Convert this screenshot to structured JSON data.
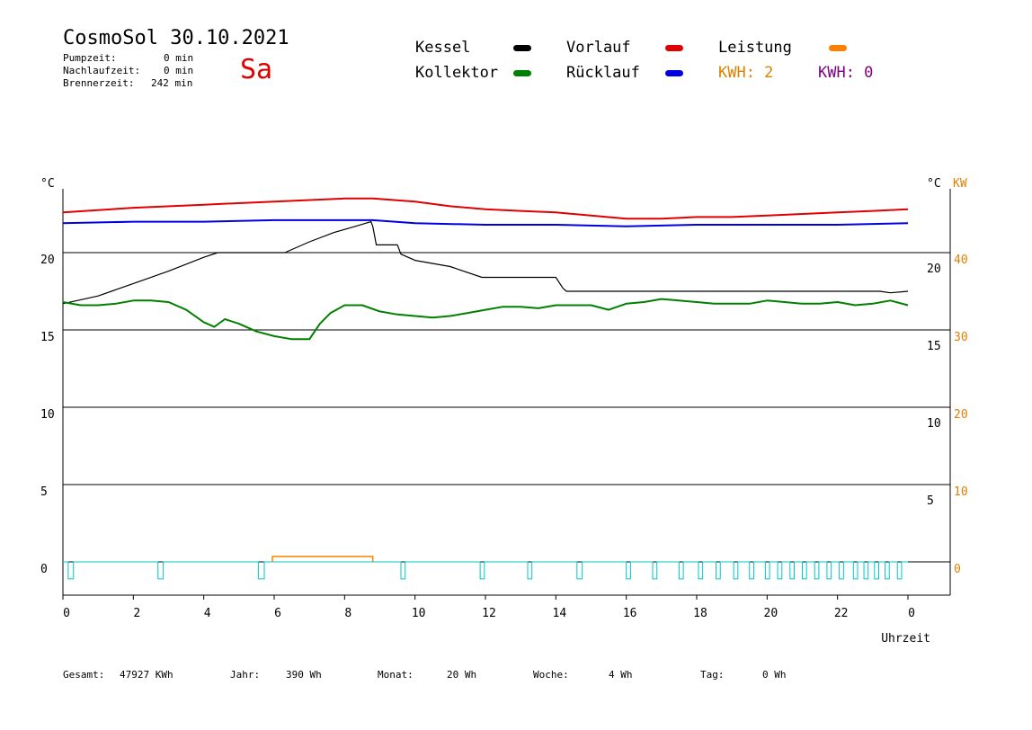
{
  "header": {
    "title": "CosmoSol 30.10.2021",
    "day": "Sa",
    "day_color": "#e00000",
    "pumpzeit_label": "Pumpzeit:",
    "pumpzeit_value": "0 min",
    "nachlaufzeit_label": "Nachlaufzeit:",
    "nachlaufzeit_value": "0 min",
    "brennerzeit_label": "Brennerzeit:",
    "brennerzeit_value": "242 min"
  },
  "legend": {
    "kessel": "Kessel",
    "vorlauf": "Vorlauf",
    "leistung": "Leistung",
    "kollektor": "Kollektor",
    "ruecklauf": "Rücklauf",
    "kwh1": "KWH: 2",
    "kwh2": "KWH: 0",
    "colors": {
      "kessel": "#000000",
      "vorlauf": "#e00000",
      "leistung": "#ff8000",
      "kollektor": "#008000",
      "ruecklauf": "#0000e0",
      "kwh1": "#e08000",
      "kwh2": "#800080"
    }
  },
  "footer": {
    "gesamt_label": "Gesamt:",
    "gesamt_value": "47927 KWh",
    "jahr_label": "Jahr:",
    "jahr_value": "390 Wh",
    "monat_label": "Monat:",
    "monat_value": "20 Wh",
    "woche_label": "Woche:",
    "woche_value": "4 Wh",
    "tag_label": "Tag:",
    "tag_value": "0 Wh"
  },
  "chart_data": {
    "type": "line",
    "xlabel": "Uhrzeit",
    "left_unit": "°C",
    "right_unit_c": "°C",
    "right_unit_kw": "KW",
    "x_ticks": [
      "0",
      "2",
      "4",
      "6",
      "8",
      "10",
      "12",
      "14",
      "16",
      "18",
      "20",
      "22",
      "0"
    ],
    "xlim": [
      0,
      24
    ],
    "ylim": [
      -1.5,
      24.5
    ],
    "y_left_ticks": [
      0,
      5,
      10,
      15,
      20
    ],
    "y_right_c_ticks": [
      5,
      10,
      15,
      20
    ],
    "y_right_kw_ticks": [
      0,
      10,
      20,
      30,
      40
    ],
    "grid_y": [
      0,
      5,
      10,
      15,
      20
    ],
    "series": [
      {
        "name": "Vorlauf",
        "color": "#e00000",
        "x": [
          0,
          2,
          4,
          6,
          8,
          8.8,
          10,
          11,
          12,
          13,
          14,
          15,
          16,
          17,
          18,
          19,
          20,
          21,
          22,
          23,
          24
        ],
        "y": [
          22.6,
          22.9,
          23.1,
          23.3,
          23.5,
          23.5,
          23.3,
          23.0,
          22.8,
          22.7,
          22.6,
          22.4,
          22.2,
          22.2,
          22.3,
          22.3,
          22.4,
          22.5,
          22.6,
          22.7,
          22.8
        ]
      },
      {
        "name": "Rücklauf",
        "color": "#0000e0",
        "x": [
          0,
          2,
          4,
          6,
          8,
          8.8,
          10,
          12,
          14,
          16,
          18,
          20,
          22,
          24
        ],
        "y": [
          21.9,
          22.0,
          22.0,
          22.1,
          22.1,
          22.1,
          21.9,
          21.8,
          21.8,
          21.7,
          21.8,
          21.8,
          21.8,
          21.9
        ]
      },
      {
        "name": "Kessel",
        "color": "#000000",
        "x": [
          0,
          1,
          2,
          3,
          4,
          4.4,
          6.3,
          7,
          7.7,
          8.3,
          8.75,
          8.8,
          8.9,
          9.5,
          9.6,
          10,
          11,
          11.9,
          12,
          14,
          14.2,
          14.3,
          16,
          18,
          20,
          22,
          23.2,
          23.5,
          24
        ],
        "y": [
          16.7,
          17.2,
          18.0,
          18.8,
          19.7,
          20.0,
          20.0,
          20.7,
          21.3,
          21.7,
          22.0,
          21.7,
          20.5,
          20.5,
          19.9,
          19.5,
          19.1,
          18.4,
          18.4,
          18.4,
          17.7,
          17.5,
          17.5,
          17.5,
          17.5,
          17.5,
          17.5,
          17.4,
          17.5
        ]
      },
      {
        "name": "Kollektor",
        "color": "#008000",
        "x": [
          0,
          0.5,
          1,
          1.5,
          2,
          2.5,
          3,
          3.5,
          4,
          4.3,
          4.6,
          5,
          5.5,
          6,
          6.5,
          7,
          7.3,
          7.6,
          8,
          8.5,
          9,
          9.5,
          10,
          10.5,
          11,
          11.5,
          12,
          12.5,
          13,
          13.5,
          14,
          14.5,
          15,
          15.5,
          16,
          16.5,
          17,
          17.5,
          18,
          18.5,
          19,
          19.5,
          20,
          20.5,
          21,
          21.5,
          22,
          22.5,
          23,
          23.5,
          24
        ],
        "y": [
          16.8,
          16.6,
          16.6,
          16.7,
          16.9,
          16.9,
          16.8,
          16.3,
          15.5,
          15.2,
          15.7,
          15.4,
          14.9,
          14.6,
          14.4,
          14.4,
          15.4,
          16.1,
          16.6,
          16.6,
          16.2,
          16.0,
          15.9,
          15.8,
          15.9,
          16.1,
          16.3,
          16.5,
          16.5,
          16.4,
          16.6,
          16.6,
          16.6,
          16.3,
          16.7,
          16.8,
          17.0,
          16.9,
          16.8,
          16.7,
          16.7,
          16.7,
          16.9,
          16.8,
          16.7,
          16.7,
          16.8,
          16.6,
          16.7,
          16.9,
          16.6
        ]
      }
    ],
    "leistung": {
      "name": "Leistung",
      "color": "#ff8000",
      "segments": [
        [
          5.95,
          8.8
        ]
      ],
      "value_kw": 0.7
    },
    "brenner": {
      "color": "#00c8c8",
      "pulses": [
        [
          0.15,
          0.3
        ],
        [
          2.7,
          2.85
        ],
        [
          5.55,
          5.72
        ],
        [
          9.6,
          9.72
        ],
        [
          11.85,
          11.97
        ],
        [
          13.2,
          13.32
        ],
        [
          14.6,
          14.75
        ],
        [
          16.0,
          16.12
        ],
        [
          16.75,
          16.87
        ],
        [
          17.5,
          17.62
        ],
        [
          18.05,
          18.17
        ],
        [
          18.55,
          18.67
        ],
        [
          19.05,
          19.17
        ],
        [
          19.5,
          19.62
        ],
        [
          19.95,
          20.07
        ],
        [
          20.3,
          20.42
        ],
        [
          20.65,
          20.77
        ],
        [
          21.0,
          21.12
        ],
        [
          21.35,
          21.47
        ],
        [
          21.7,
          21.82
        ],
        [
          22.05,
          22.17
        ],
        [
          22.45,
          22.57
        ],
        [
          22.75,
          22.87
        ],
        [
          23.05,
          23.17
        ],
        [
          23.35,
          23.47
        ],
        [
          23.7,
          23.82
        ]
      ],
      "depth": 0.5
    }
  }
}
